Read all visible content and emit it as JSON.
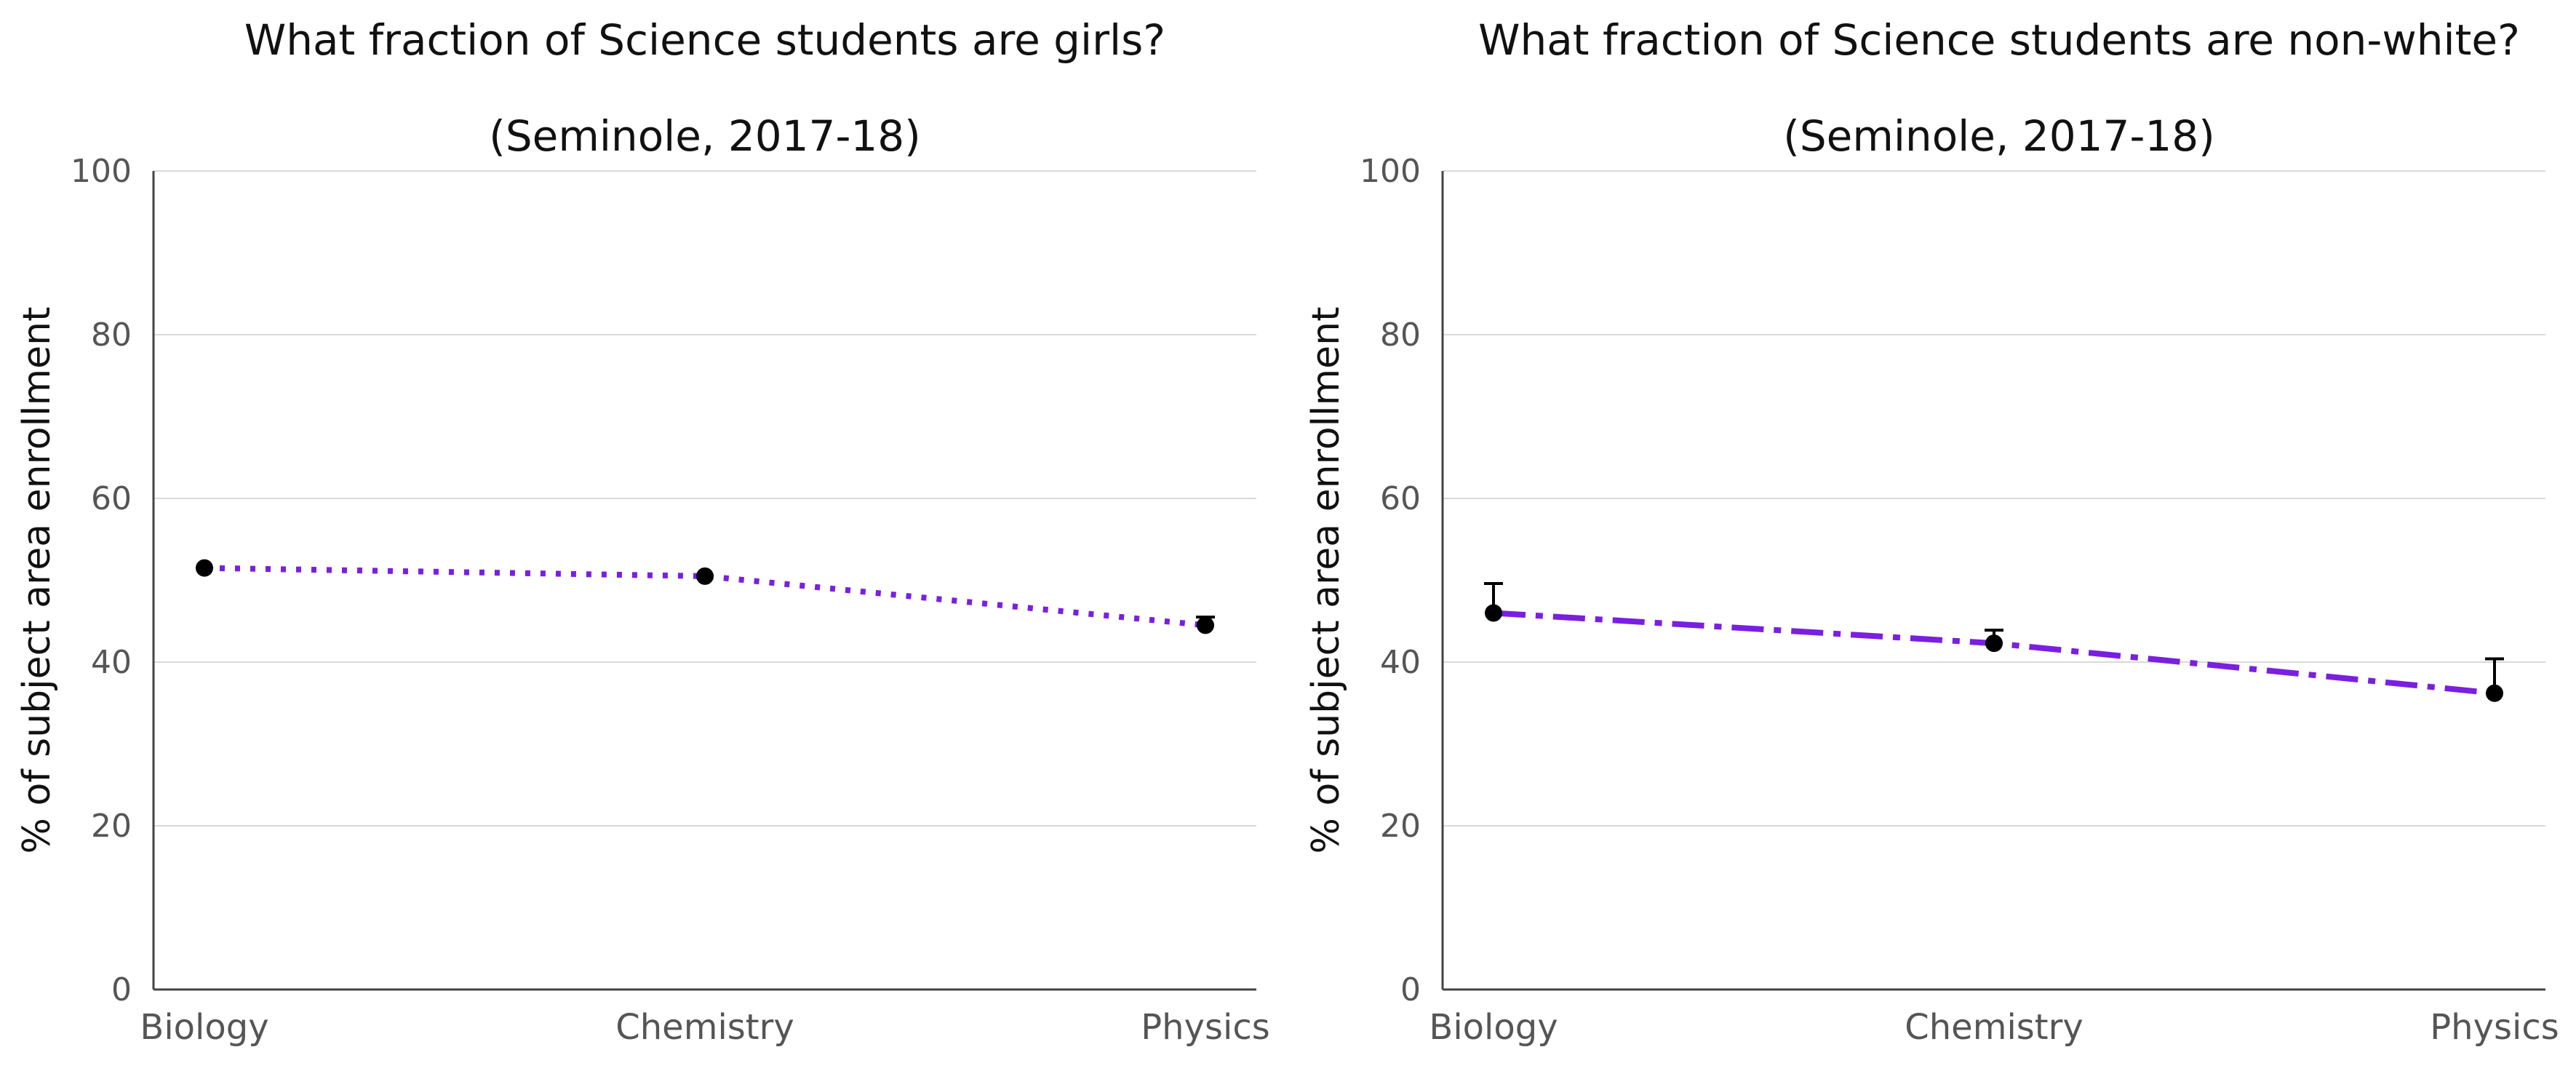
{
  "chart_data": [
    {
      "type": "line",
      "title": "What fraction of Science students are girls?",
      "subtitle": "(Seminole, 2017-18)",
      "xlabel": "",
      "ylabel": "% of subject area enrollment",
      "categories": [
        "Biology",
        "Chemistry",
        "Physics"
      ],
      "ylim": [
        0,
        100
      ],
      "yticks": [
        0,
        20,
        40,
        60,
        80,
        100
      ],
      "grid": true,
      "line_style": "dotted",
      "line_color": "#7a1fe0",
      "marker_color": "#000000",
      "series": [
        {
          "values": [
            51.5,
            50.5,
            44.5
          ],
          "error_upper": [
            null,
            null,
            45.5
          ]
        }
      ]
    },
    {
      "type": "line",
      "title": "What fraction of Science students are non-white?",
      "subtitle": "(Seminole, 2017-18)",
      "xlabel": "",
      "ylabel": "% of subject area enrollment",
      "categories": [
        "Biology",
        "Chemistry",
        "Physics"
      ],
      "ylim": [
        0,
        100
      ],
      "yticks": [
        0,
        20,
        40,
        60,
        80,
        100
      ],
      "grid": true,
      "line_style": "dash-dot",
      "line_color": "#7a1fe0",
      "marker_color": "#000000",
      "series": [
        {
          "values": [
            46.0,
            42.3,
            36.2
          ],
          "error_upper": [
            49.6,
            43.9,
            40.4
          ]
        }
      ]
    }
  ]
}
